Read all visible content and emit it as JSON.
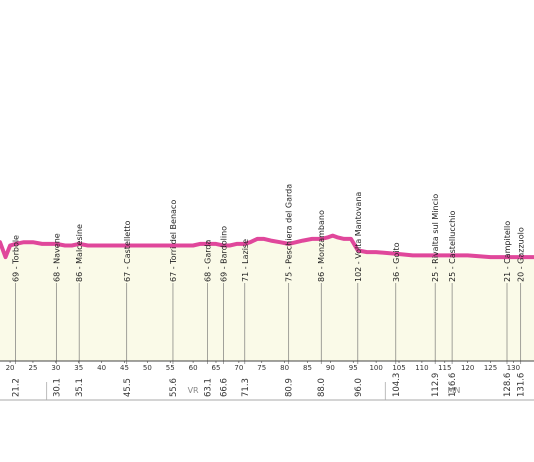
{
  "colors": {
    "line": "#e0479b",
    "fill": "#fafae8",
    "grid": "#d8d8c8",
    "axis": "#444444"
  },
  "chart_data": {
    "type": "area",
    "x_ticks": [
      20,
      25,
      30,
      35,
      40,
      45,
      50,
      55,
      60,
      65,
      70,
      75,
      80,
      85,
      90,
      95,
      100,
      105,
      110,
      115,
      120,
      125,
      130
    ],
    "x_ticks_shown": [
      "20",
      "25",
      "30",
      "35",
      "40",
      "45",
      "50",
      "55",
      "60",
      "65",
      "70",
      "75",
      "80",
      "85",
      "90",
      "95",
      "100",
      "105",
      "110",
      "115",
      "120",
      "125",
      "130"
    ],
    "xlim": [
      17.8,
      134.5
    ],
    "ylim": [
      0,
      100
    ],
    "profile": {
      "x": [
        17.8,
        19,
        20,
        21.2,
        23,
        25,
        27,
        28.5,
        30.1,
        32,
        33.5,
        35.1,
        37,
        40,
        42,
        45.5,
        48,
        50,
        53,
        55.6,
        57,
        60,
        61.5,
        63.1,
        65,
        66.6,
        68,
        69.5,
        71.3,
        72.5,
        74,
        75.5,
        77,
        79,
        80.9,
        82.5,
        84,
        86,
        88,
        89.5,
        90.5,
        91.5,
        93,
        94.5,
        96,
        98,
        100,
        104.3,
        108,
        112.9,
        115,
        116.6,
        120,
        125,
        128.6,
        131.6,
        134.5
      ],
      "y": [
        72,
        63,
        70,
        71,
        72,
        72,
        71,
        71,
        71,
        70,
        70,
        71,
        70,
        70,
        70,
        70,
        70,
        70,
        70,
        70,
        70,
        70,
        71,
        71,
        71,
        70,
        70,
        71,
        71,
        72,
        74,
        74,
        73,
        72,
        71,
        72,
        73,
        74,
        74,
        75,
        76,
        75,
        74,
        74,
        67,
        66,
        66,
        65,
        64,
        64,
        64,
        64,
        64,
        63,
        63,
        63,
        63
      ]
    },
    "markers": [
      {
        "km": 21.2,
        "km_label": "21.2",
        "town": "69 - Torbole"
      },
      {
        "km": 30.1,
        "km_label": "30.1",
        "town": "68 - Navene"
      },
      {
        "km": 35.1,
        "km_label": "35.1",
        "town": "86 - Malcesine"
      },
      {
        "km": 45.5,
        "km_label": "45.5",
        "town": "67 - Castelletto"
      },
      {
        "km": 55.6,
        "km_label": "55.6",
        "town": "67 - Torri del Benaco"
      },
      {
        "km": 63.1,
        "km_label": "63.1",
        "town": "68 - Garda"
      },
      {
        "km": 66.6,
        "km_label": "66.6",
        "town": "69 - Bardolino"
      },
      {
        "km": 71.3,
        "km_label": "71.3",
        "town": "71 - Lazise"
      },
      {
        "km": 80.9,
        "km_label": "80.9",
        "town": "75 - Peschiera del Garda"
      },
      {
        "km": 88.0,
        "km_label": "88.0",
        "town": "86 - Monzambano"
      },
      {
        "km": 96.0,
        "km_label": "96.0",
        "town": "102 - Volta Mantovana"
      },
      {
        "km": 104.3,
        "km_label": "104.3",
        "town": "36 - Goito"
      },
      {
        "km": 112.9,
        "km_label": "112.9",
        "town": "25 - Rivalta sul Mincio"
      },
      {
        "km": 116.6,
        "km_label": "116.6",
        "town": "25 - Castellucchio"
      },
      {
        "km": 128.6,
        "km_label": "128.6",
        "town": "21 - Campitello"
      },
      {
        "km": 131.6,
        "km_label": "131.6",
        "town": "20 - Gazzuolo"
      }
    ],
    "regions": [
      {
        "label": "VR",
        "center_km": 60
      },
      {
        "label": "MN",
        "center_km": 117
      }
    ],
    "region_dividers_km": [
      28,
      102
    ]
  }
}
